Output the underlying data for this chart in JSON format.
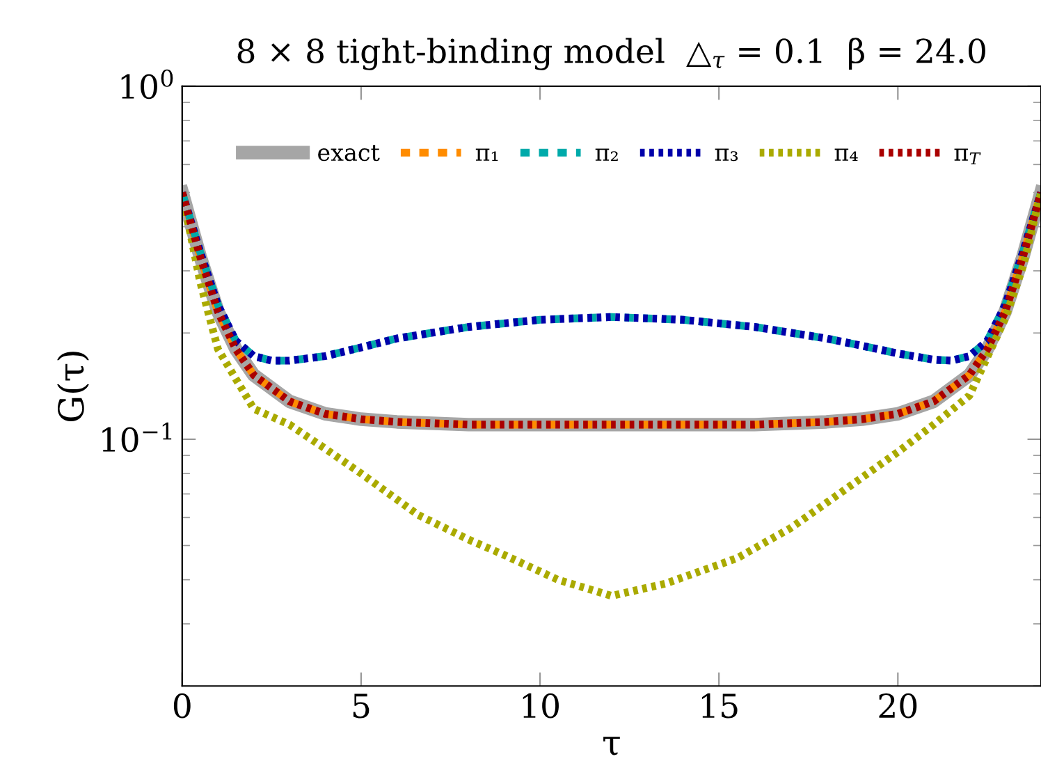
{
  "chart_data": {
    "type": "line",
    "title": "8 × 8 tight-binding model  △$_{τ}$ = 0.1  β = 24.0",
    "xlabel": "τ",
    "ylabel": "G(τ)",
    "log": "y",
    "xlim": [
      0,
      24
    ],
    "ylim": [
      0.02,
      1
    ],
    "xticks": [
      0,
      5,
      10,
      15,
      20
    ],
    "yticks": [
      {
        "value": 1,
        "label": "10$^{0}$"
      },
      {
        "value": 0.1,
        "label": "10$^{−1}$"
      }
    ],
    "grid": false,
    "legend": "top",
    "marker": "none",
    "series": [
      {
        "name": "exact",
        "color": "#a6a6a6",
        "line_style": "solid",
        "x": [
          0,
          0.5,
          1,
          1.5,
          2,
          3,
          4,
          5,
          6,
          8,
          12,
          16,
          18,
          19,
          20,
          21,
          22,
          22.5,
          23,
          23.5,
          24
        ],
        "values": [
          0.5,
          0.33,
          0.23,
          0.18,
          0.152,
          0.128,
          0.118,
          0.114,
          0.112,
          0.11,
          0.11,
          0.11,
          0.112,
          0.114,
          0.118,
          0.128,
          0.152,
          0.18,
          0.23,
          0.33,
          0.5
        ]
      },
      {
        "name": "π₁",
        "color": "#ff8c00",
        "line_style": "dashed",
        "x": [
          0,
          0.5,
          1,
          1.5,
          2,
          3,
          4,
          5,
          6,
          8,
          12,
          16,
          18,
          19,
          20,
          21,
          22,
          22.5,
          23,
          23.5,
          24
        ],
        "values": [
          0.5,
          0.33,
          0.23,
          0.18,
          0.152,
          0.128,
          0.118,
          0.114,
          0.112,
          0.11,
          0.11,
          0.11,
          0.112,
          0.114,
          0.118,
          0.128,
          0.152,
          0.18,
          0.23,
          0.33,
          0.5
        ]
      },
      {
        "name": "π₂",
        "color": "#00aaaa",
        "line_style": "dashed",
        "x": [
          0,
          0.5,
          1,
          1.5,
          2,
          2.5,
          3,
          4,
          5,
          6,
          8,
          10,
          12,
          14,
          16,
          18,
          19,
          20,
          21,
          21.5,
          22,
          22.5,
          23,
          23.5,
          24
        ],
        "values": [
          0.5,
          0.34,
          0.24,
          0.19,
          0.172,
          0.167,
          0.167,
          0.172,
          0.182,
          0.193,
          0.208,
          0.218,
          0.222,
          0.218,
          0.208,
          0.193,
          0.184,
          0.175,
          0.168,
          0.167,
          0.172,
          0.19,
          0.24,
          0.34,
          0.5
        ]
      },
      {
        "name": "π₃",
        "color": "#0000aa",
        "line_style": "dotted",
        "x": [
          0,
          0.5,
          1,
          1.5,
          2,
          2.5,
          3,
          4,
          5,
          6,
          8,
          10,
          12,
          14,
          16,
          18,
          19,
          20,
          21,
          21.5,
          22,
          22.5,
          23,
          23.5,
          24
        ],
        "values": [
          0.5,
          0.34,
          0.24,
          0.19,
          0.172,
          0.167,
          0.167,
          0.172,
          0.182,
          0.193,
          0.208,
          0.218,
          0.222,
          0.218,
          0.208,
          0.193,
          0.184,
          0.175,
          0.168,
          0.167,
          0.172,
          0.19,
          0.24,
          0.34,
          0.5
        ]
      },
      {
        "name": "π₄",
        "color": "#aaaa00",
        "line_style": "dotted",
        "x": [
          0,
          0.5,
          1,
          2,
          3,
          4,
          5,
          6.6,
          8,
          9,
          10.5,
          12,
          13.5,
          15.5,
          17,
          18,
          20,
          21,
          22,
          23,
          23.5,
          24
        ],
        "values": [
          0.5,
          0.28,
          0.18,
          0.122,
          0.11,
          0.094,
          0.08,
          0.061,
          0.052,
          0.047,
          0.04,
          0.036,
          0.039,
          0.046,
          0.056,
          0.066,
          0.092,
          0.11,
          0.133,
          0.22,
          0.31,
          0.5
        ]
      },
      {
        "name": "π$_{T}$",
        "color": "#aa0000",
        "line_style": "dotted",
        "x": [
          0,
          0.5,
          1,
          1.5,
          2,
          3,
          4,
          5,
          6,
          8,
          12,
          16,
          18,
          19,
          20,
          21,
          22,
          22.5,
          23,
          23.5,
          24
        ],
        "values": [
          0.5,
          0.33,
          0.23,
          0.18,
          0.152,
          0.128,
          0.118,
          0.114,
          0.112,
          0.11,
          0.11,
          0.11,
          0.112,
          0.114,
          0.118,
          0.128,
          0.152,
          0.18,
          0.23,
          0.33,
          0.5
        ]
      }
    ]
  }
}
